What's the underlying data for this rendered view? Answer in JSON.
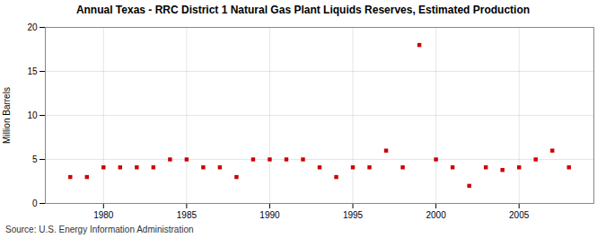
{
  "chart_data": {
    "type": "scatter",
    "title": "Annual Texas - RRC District 1 Natural Gas Plant Liquids Reserves, Estimated Production",
    "ylabel": "Million Barrels",
    "source": "Source: U.S. Energy Information Administration",
    "x": [
      1978,
      1979,
      1980,
      1981,
      1982,
      1983,
      1984,
      1985,
      1986,
      1987,
      1988,
      1989,
      1990,
      1991,
      1992,
      1993,
      1994,
      1995,
      1996,
      1997,
      1998,
      1999,
      2000,
      2001,
      2002,
      2003,
      2004,
      2005,
      2006,
      2007,
      2008
    ],
    "values": [
      3.0,
      3.0,
      4.1,
      4.1,
      4.1,
      4.1,
      5.0,
      5.0,
      4.1,
      4.1,
      3.0,
      5.0,
      5.0,
      5.0,
      5.0,
      4.1,
      3.0,
      4.1,
      4.1,
      6.0,
      4.1,
      18.0,
      5.0,
      4.1,
      2.0,
      4.1,
      3.8,
      4.1,
      5.0,
      6.0,
      4.1
    ],
    "color": "#cc0000",
    "marker": "square",
    "xlim": [
      1976.5,
      2009.5
    ],
    "xticks": [
      1980,
      1985,
      1990,
      1995,
      2000,
      2005
    ],
    "ylim": [
      0,
      20
    ],
    "yticks": [
      0,
      5,
      10,
      15,
      20
    ],
    "grid": true
  }
}
